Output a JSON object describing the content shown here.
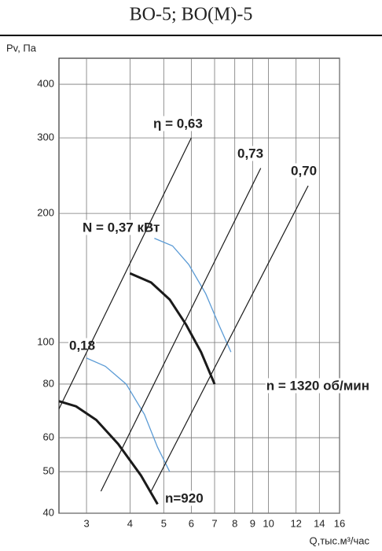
{
  "chart_data": {
    "type": "line",
    "title": "ВО-5; ВО(М)-5",
    "y_label": "Pv, Па",
    "x_label": "Q,тыс.м³/час",
    "xscale": "log",
    "yscale": "log",
    "grid": true,
    "xlim": [
      2.5,
      16
    ],
    "ylim": [
      40,
      460
    ],
    "xticks": [
      3,
      4,
      5,
      6,
      7,
      8,
      9,
      10,
      12,
      14,
      16
    ],
    "yticks": [
      40,
      50,
      60,
      80,
      100,
      200,
      300,
      400
    ],
    "series": [
      {
        "name": "n = 1320 об/мин",
        "color": "#1a1a1a",
        "x": [
          4,
          4.6,
          5.2,
          5.8,
          6.4,
          7
        ],
        "values": [
          145,
          138,
          126,
          110,
          95,
          80
        ]
      },
      {
        "name": "N = 0,37 кВт",
        "color": "#5b9bd5",
        "x": [
          4.7,
          5.3,
          5.9,
          6.6,
          7.2,
          7.8
        ],
        "values": [
          175,
          168,
          152,
          130,
          110,
          95
        ]
      },
      {
        "name": "n=920",
        "color": "#1a1a1a",
        "x": [
          2.5,
          2.8,
          3.2,
          3.7,
          4.3,
          4.8
        ],
        "values": [
          73,
          71,
          66,
          58,
          49,
          42
        ]
      },
      {
        "name": "0,18",
        "color": "#5b9bd5",
        "x": [
          3,
          3.4,
          3.9,
          4.4,
          4.8,
          5.2
        ],
        "values": [
          92,
          88,
          80,
          68,
          57,
          50
        ]
      },
      {
        "name": "η = 0,63",
        "color": "#1a1a1a",
        "x": [
          2.5,
          6
        ],
        "values": [
          70,
          300
        ]
      },
      {
        "name": "0,73",
        "color": "#1a1a1a",
        "x": [
          3.3,
          9.5
        ],
        "values": [
          45,
          255
        ]
      },
      {
        "name": "0,70",
        "color": "#1a1a1a",
        "x": [
          4.6,
          13
        ],
        "values": [
          45,
          232
        ]
      }
    ]
  }
}
